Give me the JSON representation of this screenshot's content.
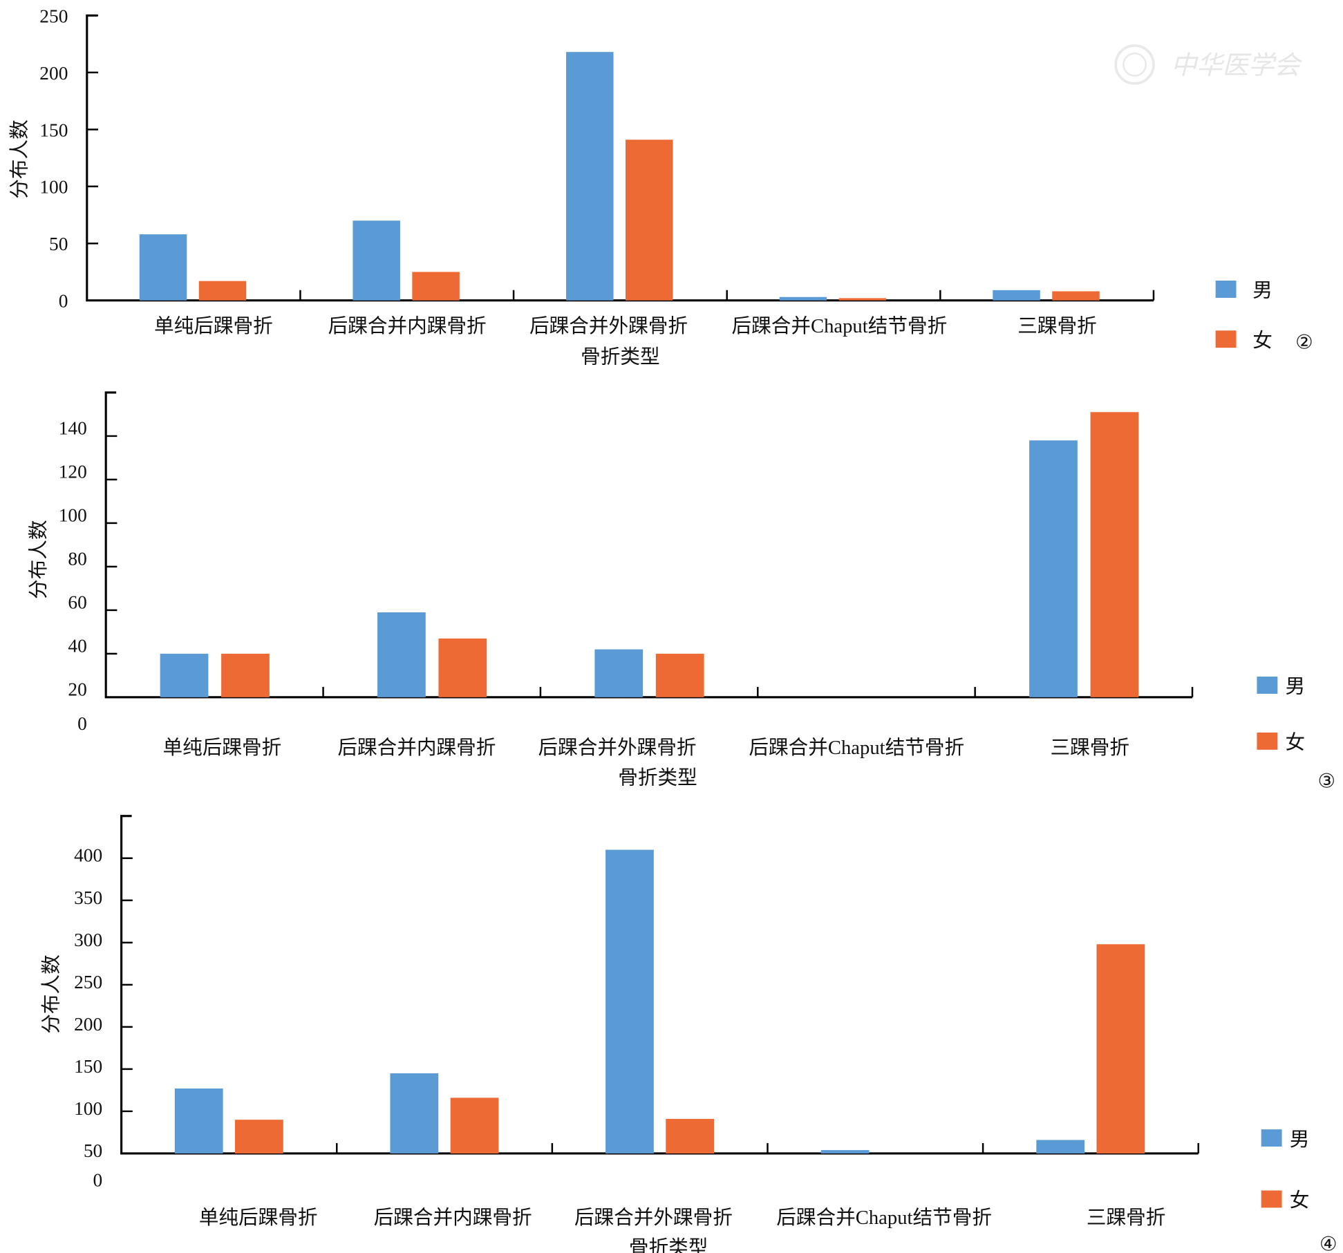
{
  "colors": {
    "male": "#5b9bd5",
    "female": "#ed6a35",
    "axis": "#000000"
  },
  "watermark": "中华医学会",
  "chart_data": [
    {
      "type": "bar",
      "panel_label": "②",
      "xlabel": "骨折类型",
      "ylabel": "分布人数",
      "ylim": [
        0,
        250
      ],
      "yticks": [
        0,
        50,
        100,
        150,
        200,
        250
      ],
      "categories": [
        "单纯后踝骨折",
        "后踝合并内踝骨折",
        "后踝合并外踝骨折",
        "后踝合并Chaput结节骨折",
        "三踝骨折"
      ],
      "series": [
        {
          "name": "男",
          "values": [
            58,
            70,
            218,
            3,
            9
          ]
        },
        {
          "name": "女",
          "values": [
            17,
            25,
            141,
            2,
            8
          ]
        }
      ],
      "legend": "right",
      "grid": false
    },
    {
      "type": "bar",
      "panel_label": "③",
      "xlabel": "骨折类型",
      "ylabel": "分布人数",
      "ylim": [
        20,
        160
      ],
      "yticks": [
        0,
        20,
        40,
        60,
        80,
        100,
        120,
        140
      ],
      "categories": [
        "单纯后踝骨折",
        "后踝合并内踝骨折",
        "后踝合并外踝骨折",
        "后踝合并Chaput结节骨折",
        "三踝骨折"
      ],
      "series": [
        {
          "name": "男",
          "values": [
            40,
            59,
            42,
            null,
            138
          ]
        },
        {
          "name": "女",
          "values": [
            40,
            47,
            40,
            null,
            151
          ]
        }
      ],
      "legend": "right",
      "grid": false
    },
    {
      "type": "bar",
      "panel_label": "④",
      "xlabel": "骨折类型",
      "ylabel": "分布人数",
      "ylim": [
        50,
        450
      ],
      "yticks": [
        0,
        50,
        100,
        150,
        200,
        250,
        300,
        350,
        400
      ],
      "categories": [
        "单纯后踝骨折",
        "后踝合并内踝骨折",
        "后踝合并外踝骨折",
        "后踝合并Chaput结节骨折",
        "三踝骨折"
      ],
      "series": [
        {
          "name": "男",
          "values": [
            127,
            145,
            410,
            54,
            66
          ]
        },
        {
          "name": "女",
          "values": [
            90,
            116,
            91,
            null,
            298
          ]
        }
      ],
      "legend": "right",
      "grid": false
    }
  ]
}
